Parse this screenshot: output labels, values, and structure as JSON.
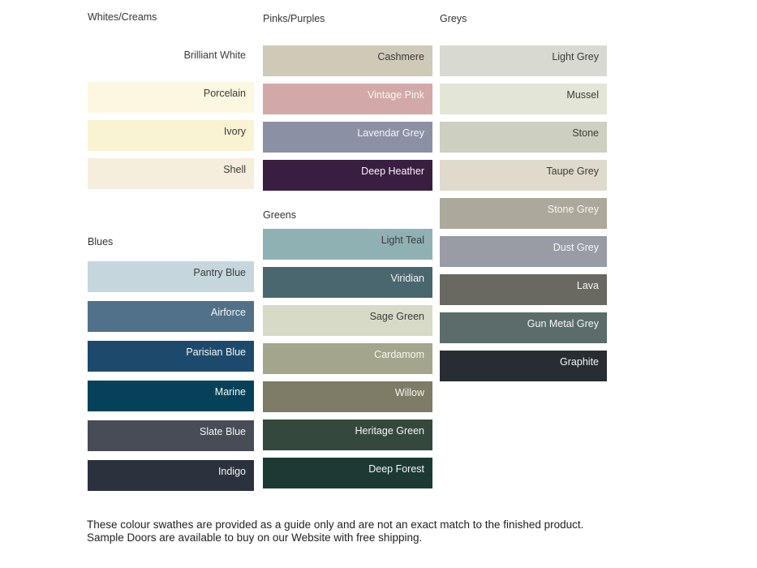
{
  "columns": [
    {
      "sections": [
        {
          "title": "Whites/Creams",
          "swatches": [
            {
              "name": "Brilliant White",
              "color": "#FFFFFF",
              "text": "dark"
            },
            {
              "name": "Porcelain",
              "color": "#FBF7E0",
              "text": "dark"
            },
            {
              "name": "Ivory",
              "color": "#FAF3D3",
              "text": "dark"
            },
            {
              "name": "Shell",
              "color": "#F6EEDC",
              "text": "dark"
            }
          ]
        },
        {
          "title": "Blues",
          "swatches": [
            {
              "name": "Pantry Blue",
              "color": "#C5D7DD",
              "text": "dark"
            },
            {
              "name": "Airforce",
              "color": "#51718A",
              "text": "light"
            },
            {
              "name": "Parisian Blue",
              "color": "#1D4A6C",
              "text": "light"
            },
            {
              "name": "Marine",
              "color": "#05425A",
              "text": "light"
            },
            {
              "name": "Slate Blue",
              "color": "#474C56",
              "text": "light"
            },
            {
              "name": "Indigo",
              "color": "#2B323D",
              "text": "light"
            }
          ]
        }
      ]
    },
    {
      "sections": [
        {
          "title": "Pinks/Purples",
          "swatches": [
            {
              "name": "Cashmere",
              "color": "#CFC9B8",
              "text": "dark"
            },
            {
              "name": "Vintage Pink",
              "color": "#D2A9A8",
              "text": "light"
            },
            {
              "name": "Lavendar Grey",
              "color": "#8B90A4",
              "text": "light"
            },
            {
              "name": "Deep Heather",
              "color": "#3A1E42",
              "text": "light"
            }
          ]
        },
        {
          "title": "Greens",
          "swatches": [
            {
              "name": "Light Teal",
              "color": "#90B1B4",
              "text": "dark"
            },
            {
              "name": "Viridian",
              "color": "#4A666F",
              "text": "light"
            },
            {
              "name": "Sage Green",
              "color": "#D6DAC7",
              "text": "dark"
            },
            {
              "name": "Cardamom",
              "color": "#A3A68C",
              "text": "light"
            },
            {
              "name": "Willow",
              "color": "#7E7B66",
              "text": "light"
            },
            {
              "name": "Heritage Green",
              "color": "#35483E",
              "text": "light"
            },
            {
              "name": "Deep Forest",
              "color": "#1C3A33",
              "text": "light"
            }
          ]
        }
      ]
    },
    {
      "sections": [
        {
          "title": "Greys",
          "swatches": [
            {
              "name": "Light Grey",
              "color": "#D8D9D1",
              "text": "dark"
            },
            {
              "name": "Mussel",
              "color": "#E3E5D6",
              "text": "dark"
            },
            {
              "name": "Stone",
              "color": "#CDCFC0",
              "text": "dark"
            },
            {
              "name": "Taupe Grey",
              "color": "#DFDACC",
              "text": "dark"
            },
            {
              "name": "Stone Grey",
              "color": "#ACA89B",
              "text": "light"
            },
            {
              "name": "Dust Grey",
              "color": "#999CA4",
              "text": "light"
            },
            {
              "name": "Lava",
              "color": "#696861",
              "text": "light"
            },
            {
              "name": "Gun Metal Grey",
              "color": "#5B6C6A",
              "text": "light"
            },
            {
              "name": "Graphite",
              "color": "#282D33",
              "text": "light"
            }
          ]
        }
      ]
    }
  ],
  "footer": {
    "note": "These colour swathes are provided as a guide only and are not an exact match to the finished product.  Sample Doors are available to buy on our Website with free shipping."
  },
  "colors": {
    "label_dark": "#3b3b3b",
    "label_light": "#f6f6f6",
    "heading": "#333333",
    "background": "#ffffff"
  }
}
